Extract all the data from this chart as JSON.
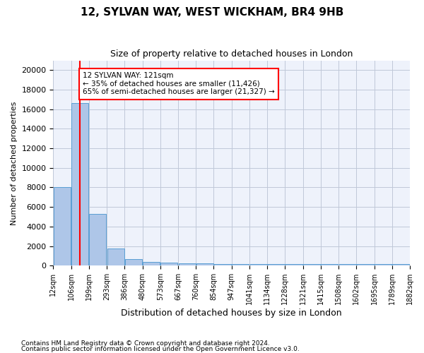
{
  "title": "12, SYLVAN WAY, WEST WICKHAM, BR4 9HB",
  "subtitle": "Size of property relative to detached houses in London",
  "xlabel": "Distribution of detached houses by size in London",
  "ylabel": "Number of detached properties",
  "bar_values": [
    8050,
    16600,
    5300,
    1750,
    700,
    350,
    275,
    200,
    200,
    175,
    175,
    150,
    150,
    150,
    150,
    125,
    125,
    125,
    150,
    125
  ],
  "bin_labels": [
    "12sqm",
    "106sqm",
    "199sqm",
    "293sqm",
    "386sqm",
    "480sqm",
    "573sqm",
    "667sqm",
    "760sqm",
    "854sqm",
    "947sqm",
    "1041sqm",
    "1134sqm",
    "1228sqm",
    "1321sqm",
    "1415sqm",
    "1508sqm",
    "1602sqm",
    "1695sqm",
    "1789sqm",
    "1882sqm"
  ],
  "bar_color": "#aec6e8",
  "bar_edge_color": "#5a9fd4",
  "vline_x": 1.0,
  "vline_color": "red",
  "annotation_text": "12 SYLVAN WAY: 121sqm\n← 35% of detached houses are smaller (11,426)\n65% of semi-detached houses are larger (21,327) →",
  "annotation_box_color": "white",
  "annotation_box_edge": "red",
  "ylim": [
    0,
    21000
  ],
  "yticks": [
    0,
    2000,
    4000,
    6000,
    8000,
    10000,
    12000,
    14000,
    16000,
    18000,
    20000
  ],
  "footnote1": "Contains HM Land Registry data © Crown copyright and database right 2024.",
  "footnote2": "Contains public sector information licensed under the Open Government Licence v3.0.",
  "background_color": "#eef2fb",
  "grid_color": "#c0c8d8"
}
